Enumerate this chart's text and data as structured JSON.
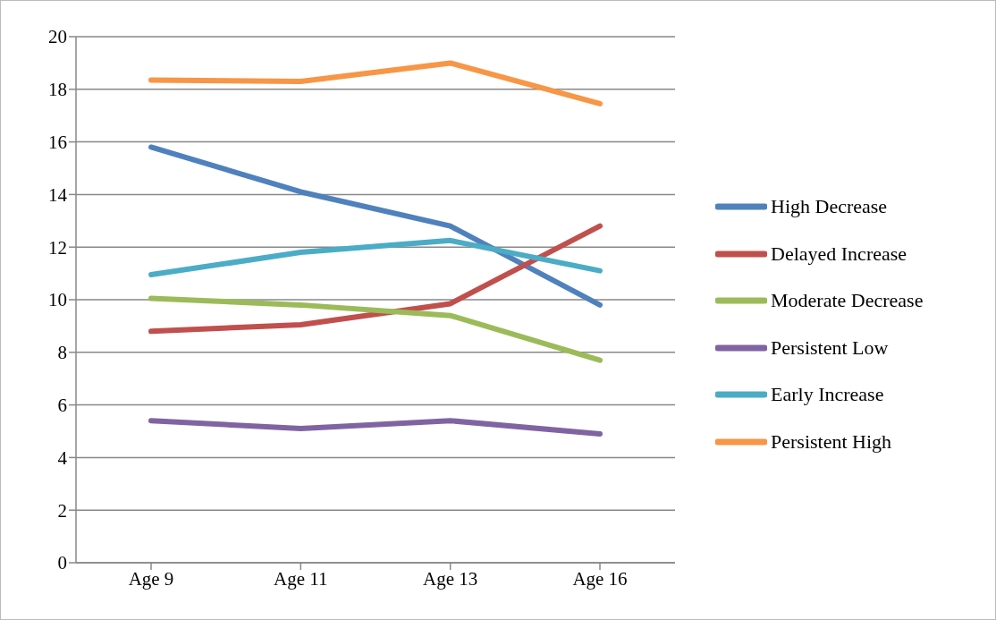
{
  "chart_data": {
    "type": "line",
    "categories": [
      "Age 9",
      "Age 11",
      "Age 13",
      "Age 16"
    ],
    "series": [
      {
        "name": "High Decrease",
        "color": "#4f81bd",
        "values": [
          15.8,
          14.1,
          12.8,
          9.8
        ]
      },
      {
        "name": "Delayed Increase",
        "color": "#c0504d",
        "values": [
          8.8,
          9.05,
          9.85,
          12.8
        ]
      },
      {
        "name": "Moderate Decrease",
        "color": "#9bbb59",
        "values": [
          10.05,
          9.8,
          9.4,
          7.7
        ]
      },
      {
        "name": "Persistent Low",
        "color": "#8064a2",
        "values": [
          5.4,
          5.1,
          5.4,
          4.9
        ]
      },
      {
        "name": "Early Increase",
        "color": "#4bacc6",
        "values": [
          10.95,
          11.8,
          12.25,
          11.1
        ]
      },
      {
        "name": "Persistent High",
        "color": "#f79646",
        "values": [
          18.35,
          18.3,
          19.0,
          17.45
        ]
      }
    ],
    "ylim": [
      0,
      20
    ],
    "yticks": [
      0,
      2,
      4,
      6,
      8,
      10,
      12,
      14,
      16,
      18,
      20
    ],
    "grid": "y",
    "legend": "right",
    "marker": "none",
    "line_style": "solid"
  }
}
